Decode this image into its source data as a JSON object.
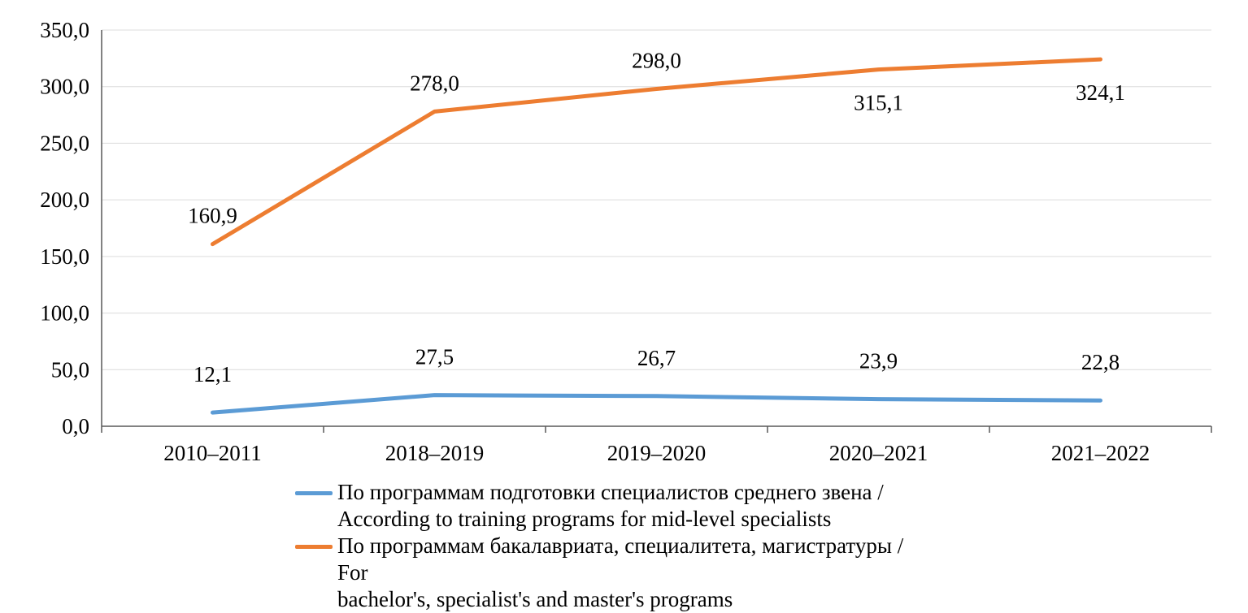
{
  "chart_data": {
    "type": "line",
    "categories": [
      "2010–2011",
      "2018–2019",
      "2019–2020",
      "2020–2021",
      "2021–2022"
    ],
    "series": [
      {
        "name": "По программам подготовки специалистов среднего звена / According to training programs for mid-level specialists",
        "values": [
          12.1,
          27.5,
          26.7,
          23.9,
          22.8
        ],
        "labels": [
          "12,1",
          "27,5",
          "26,7",
          "23,9",
          "22,8"
        ],
        "label_position": [
          "above",
          "above",
          "above",
          "above",
          "above"
        ],
        "color": "#5B9BD5"
      },
      {
        "name": "По программам бакалавриата, специалитета, магистратуры / For bachelor's, specialist's and master's programs",
        "values": [
          160.9,
          278.0,
          298.0,
          315.1,
          324.1
        ],
        "labels": [
          "160,9",
          "278,0",
          "298,0",
          "315,1",
          "324,1"
        ],
        "label_position": [
          "above",
          "above",
          "above",
          "below",
          "below"
        ],
        "color": "#ED7D31"
      }
    ],
    "ylim": [
      0,
      350
    ],
    "ytick_step": 50,
    "ytick_labels": [
      "0,0",
      "50,0",
      "100,0",
      "150,0",
      "200,0",
      "250,0",
      "300,0",
      "350,0"
    ],
    "grid": true,
    "legend_position": "bottom",
    "legend": [
      {
        "lines": [
          "По программам подготовки специалистов среднего звена /",
          "According to training programs for mid-level specialists"
        ]
      },
      {
        "lines": [
          "По программам бакалавриата, специалитета, магистратуры / For",
          "bachelor's, specialist's and master's programs"
        ]
      }
    ],
    "colors": {
      "grid": "#DCDCDC",
      "axis": "#595959",
      "text": "#000000"
    }
  }
}
